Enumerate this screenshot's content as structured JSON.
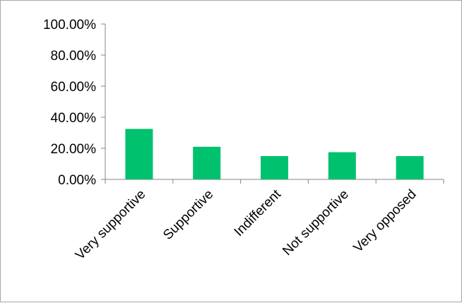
{
  "chart_data": {
    "type": "bar",
    "title": "",
    "xlabel": "",
    "ylabel": "",
    "categories": [
      "Very supportive",
      "Supportive",
      "Indifferent",
      "Not supportive",
      "Very opposed"
    ],
    "values": [
      32.5,
      21.0,
      15.0,
      17.5,
      15.0
    ],
    "value_unit": "percent",
    "ylim": [
      0,
      100
    ],
    "yticks": [
      0,
      20,
      40,
      60,
      80,
      100
    ],
    "ytick_labels": [
      "0.00%",
      "20.00%",
      "40.00%",
      "60.00%",
      "80.00%",
      "100.00%"
    ],
    "bar_color": "#00c16e",
    "grid": false,
    "legend": "none"
  }
}
